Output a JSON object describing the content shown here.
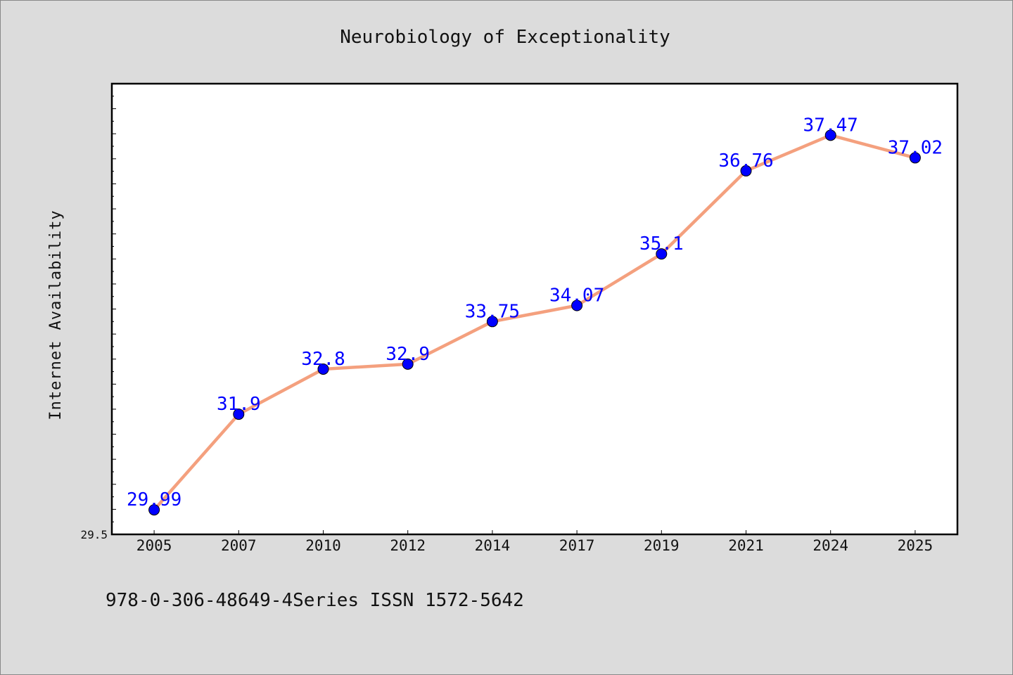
{
  "chart_data": {
    "type": "line",
    "title": "Neurobiology of Exceptionality",
    "xlabel": "",
    "ylabel": "Internet Availability",
    "footer": "978-0-306-48649-4Series ISSN 1572-5642",
    "categories": [
      "2005",
      "2007",
      "2010",
      "2012",
      "2014",
      "2017",
      "2019",
      "2021",
      "2024",
      "2025"
    ],
    "values": [
      29.99,
      31.9,
      32.8,
      32.9,
      33.75,
      34.07,
      35.1,
      36.76,
      37.47,
      37.02
    ],
    "data_labels": [
      "29.99",
      "31.9",
      "32.8",
      "32.9",
      "33.75",
      "34.07",
      "35.1",
      "36.76",
      "37.47",
      "37.02"
    ],
    "y_tick_labels": [
      "29.5"
    ],
    "ylim": [
      29.5,
      38.5
    ],
    "grid": false,
    "colors": {
      "line": "#f4a07e",
      "marker": "#0000ff",
      "data_label": "#0000ff",
      "background": "#dcdcdc",
      "plot_background": "#ffffff"
    }
  }
}
